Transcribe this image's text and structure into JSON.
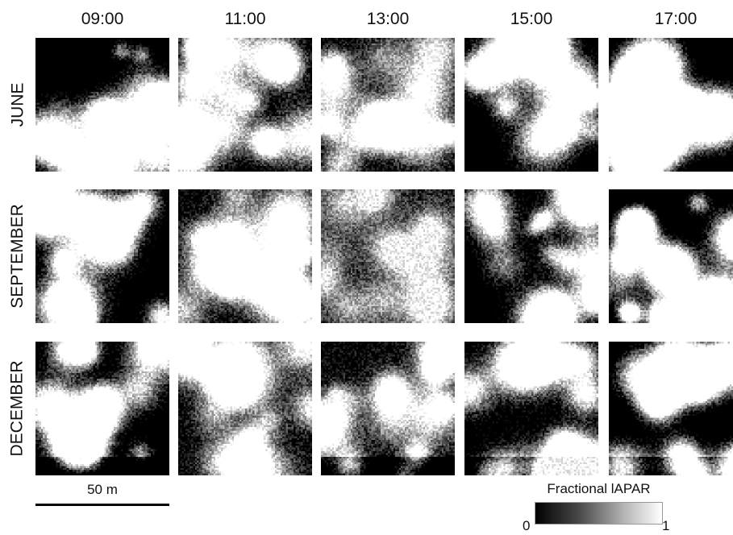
{
  "columns": [
    "09:00",
    "11:00",
    "13:00",
    "15:00",
    "17:00"
  ],
  "rows": [
    "JUNE",
    "SEPTEMBER",
    "DECEMBER"
  ],
  "scalebar": {
    "label": "50 m"
  },
  "colorbar": {
    "title": "Fractional lAPAR",
    "min_label": "0",
    "max_label": "1",
    "min_color": "#000000",
    "max_color": "#ffffff"
  }
}
